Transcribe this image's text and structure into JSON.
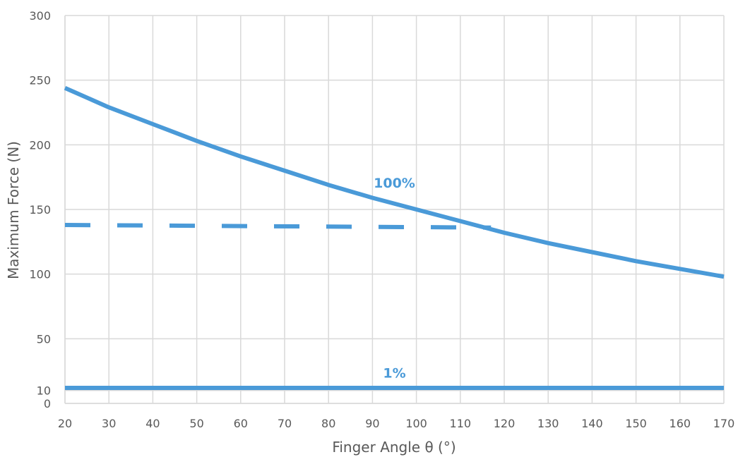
{
  "chart_data": {
    "type": "line",
    "title": "",
    "xlabel": "Finger Angle θ (°)",
    "ylabel": "Maximum Force (N)",
    "xlim": [
      20,
      170
    ],
    "ylim": [
      0,
      300
    ],
    "x_ticks": [
      20,
      30,
      40,
      50,
      60,
      70,
      80,
      90,
      100,
      110,
      120,
      130,
      140,
      150,
      160,
      170
    ],
    "y_ticks": [
      0,
      10,
      50,
      100,
      150,
      200,
      250,
      300
    ],
    "grid": true,
    "legend": "none",
    "series_color": "#4a9ad8",
    "series": [
      {
        "name": "100%",
        "style": "solid",
        "x": [
          20,
          30,
          40,
          50,
          60,
          70,
          80,
          90,
          100,
          110,
          120,
          130,
          140,
          150,
          160,
          170
        ],
        "y": [
          244,
          229,
          216,
          203,
          191,
          180,
          169,
          159,
          150,
          141,
          132,
          124,
          117,
          110,
          104,
          98
        ]
      },
      {
        "name": "",
        "style": "dashed",
        "x": [
          20,
          117
        ],
        "y": [
          138,
          136
        ]
      },
      {
        "name": "1%",
        "style": "solid",
        "x": [
          20,
          170
        ],
        "y": [
          12,
          12
        ]
      }
    ],
    "annotations": [
      {
        "text": "100%",
        "x": 95,
        "y": 167
      },
      {
        "text": "1%",
        "x": 95,
        "y": 20
      }
    ]
  }
}
